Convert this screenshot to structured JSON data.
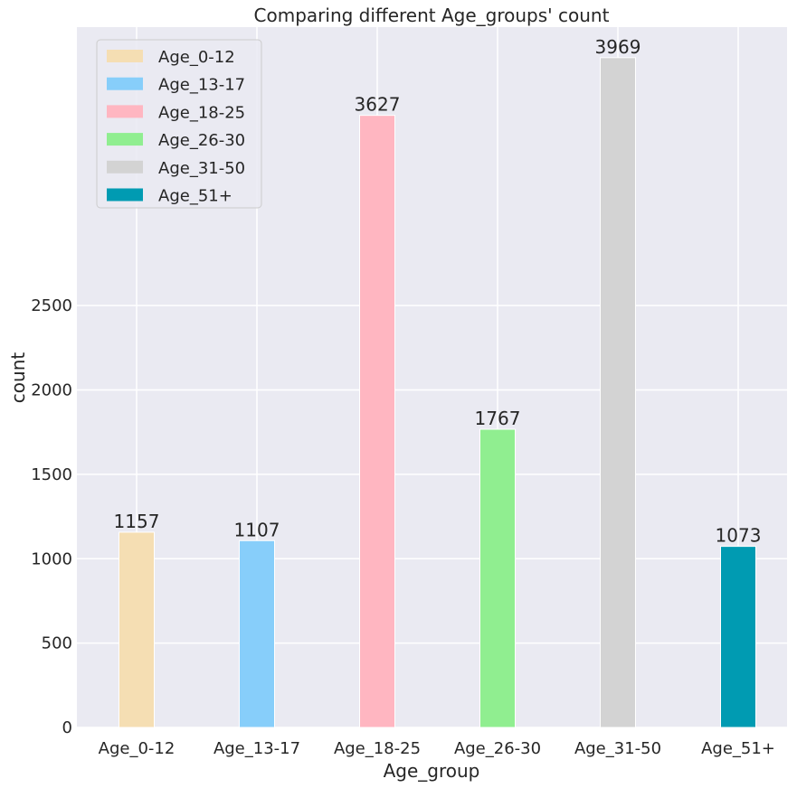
{
  "chart_data": {
    "type": "bar",
    "title": "Comparing different Age_groups' count",
    "xlabel": "Age_group",
    "ylabel": "count",
    "categories": [
      "Age_0-12",
      "Age_13-17",
      "Age_18-25",
      "Age_26-30",
      "Age_31-50",
      "Age_51+"
    ],
    "values": [
      1157,
      1107,
      3627,
      1767,
      3969,
      1073
    ],
    "data_labels": [
      "1157",
      "1107",
      "3627",
      "1767",
      "3969",
      "1073"
    ],
    "colors": [
      "#f5deb3",
      "#87cefa",
      "#ffb6c1",
      "#90ee90",
      "#d3d3d3",
      "#009bb2"
    ],
    "yticks": [
      0,
      500,
      1000,
      1500,
      2000,
      2500
    ],
    "ytick_labels": [
      "0",
      "500",
      "1000",
      "1500",
      "2000",
      "2500"
    ],
    "ylim": [
      0,
      4150
    ],
    "grid": true,
    "background": "#eaeaf2",
    "legend": {
      "placement": "top-left",
      "entries": [
        "Age_0-12",
        "Age_13-17",
        "Age_18-25",
        "Age_26-30",
        "Age_31-50",
        "Age_51+"
      ]
    }
  }
}
